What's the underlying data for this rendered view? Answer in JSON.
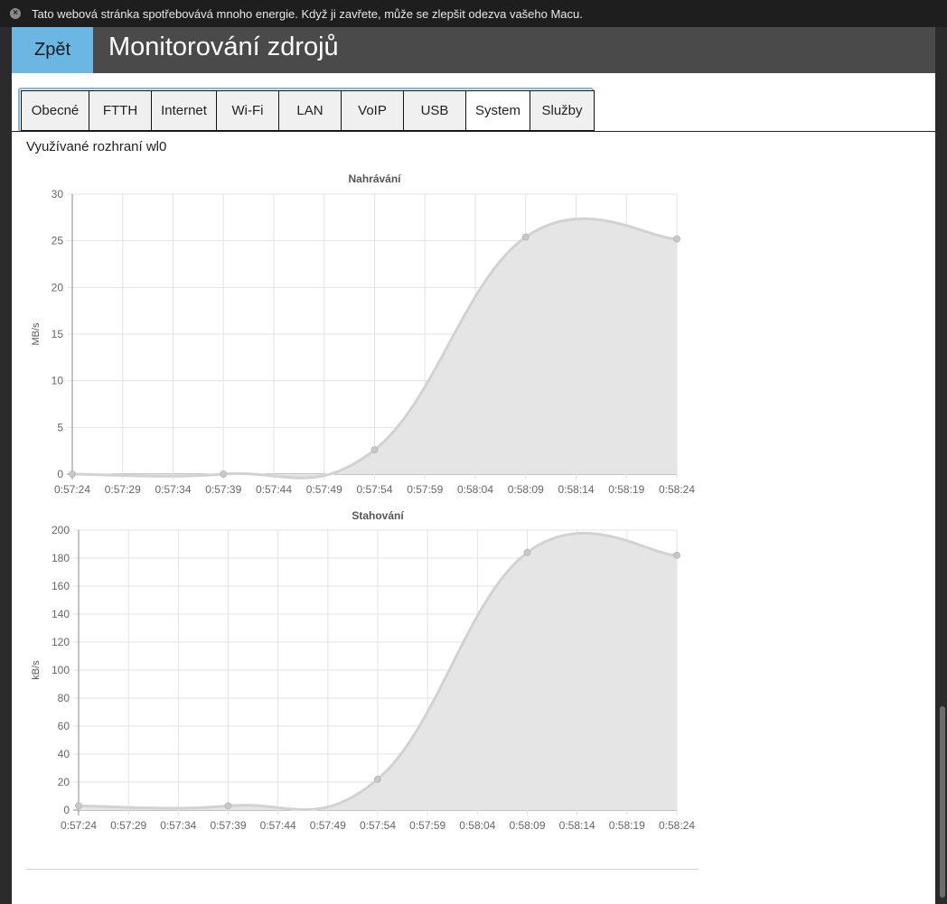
{
  "notice": {
    "text": "Tato webová stránka spotřebovává mnoho energie. Když ji zavřete, může se zlepšit odezva vašeho Macu."
  },
  "header": {
    "back_label": "Zpět",
    "title": "Monitorování zdrojů"
  },
  "tabs": [
    {
      "label": "Obecné",
      "active": false
    },
    {
      "label": "FTTH",
      "active": false
    },
    {
      "label": "Internet",
      "active": false
    },
    {
      "label": "Wi-Fi",
      "active": false
    },
    {
      "label": "LAN",
      "active": false
    },
    {
      "label": "VoIP",
      "active": false
    },
    {
      "label": "USB",
      "active": false
    },
    {
      "label": "System",
      "active": true
    },
    {
      "label": "Služby",
      "active": false
    }
  ],
  "interface_label": "Využívané rozhraní wl0",
  "colors": {
    "accent": "#6cb6e4",
    "header": "#4a4a4a",
    "area_fill": "#e5e5e5",
    "line": "#d2d2d2",
    "point": "#c8c8c8"
  },
  "chart_data": [
    {
      "type": "area",
      "title": "Nahrávání",
      "xlabel": "",
      "ylabel": "MB/s",
      "x": [
        "0:57:24",
        "0:57:29",
        "0:57:34",
        "0:57:39",
        "0:57:44",
        "0:57:49",
        "0:57:54",
        "0:57:59",
        "0:58:04",
        "0:58:09",
        "0:58:14",
        "0:58:19",
        "0:58:24"
      ],
      "points": [
        {
          "x": "0:57:24",
          "y": 0
        },
        {
          "x": "0:57:39",
          "y": 0
        },
        {
          "x": "0:57:54",
          "y": 2.6
        },
        {
          "x": "0:58:09",
          "y": 25.4
        },
        {
          "x": "0:58:24",
          "y": 25.2
        }
      ],
      "ylim": [
        0,
        30
      ],
      "yticks": [
        0,
        5,
        10,
        15,
        20,
        25,
        30
      ],
      "grid": true,
      "legend": "none"
    },
    {
      "type": "area",
      "title": "Stahování",
      "xlabel": "",
      "ylabel": "kB/s",
      "x": [
        "0:57:24",
        "0:57:29",
        "0:57:34",
        "0:57:39",
        "0:57:44",
        "0:57:49",
        "0:57:54",
        "0:57:59",
        "0:58:04",
        "0:58:09",
        "0:58:14",
        "0:58:19",
        "0:58:24"
      ],
      "points": [
        {
          "x": "0:57:24",
          "y": 3
        },
        {
          "x": "0:57:39",
          "y": 3
        },
        {
          "x": "0:57:54",
          "y": 22
        },
        {
          "x": "0:58:09",
          "y": 184
        },
        {
          "x": "0:58:24",
          "y": 182
        }
      ],
      "ylim": [
        0,
        200
      ],
      "yticks": [
        0,
        20,
        40,
        60,
        80,
        100,
        120,
        140,
        160,
        180,
        200
      ],
      "grid": true,
      "legend": "none"
    }
  ]
}
